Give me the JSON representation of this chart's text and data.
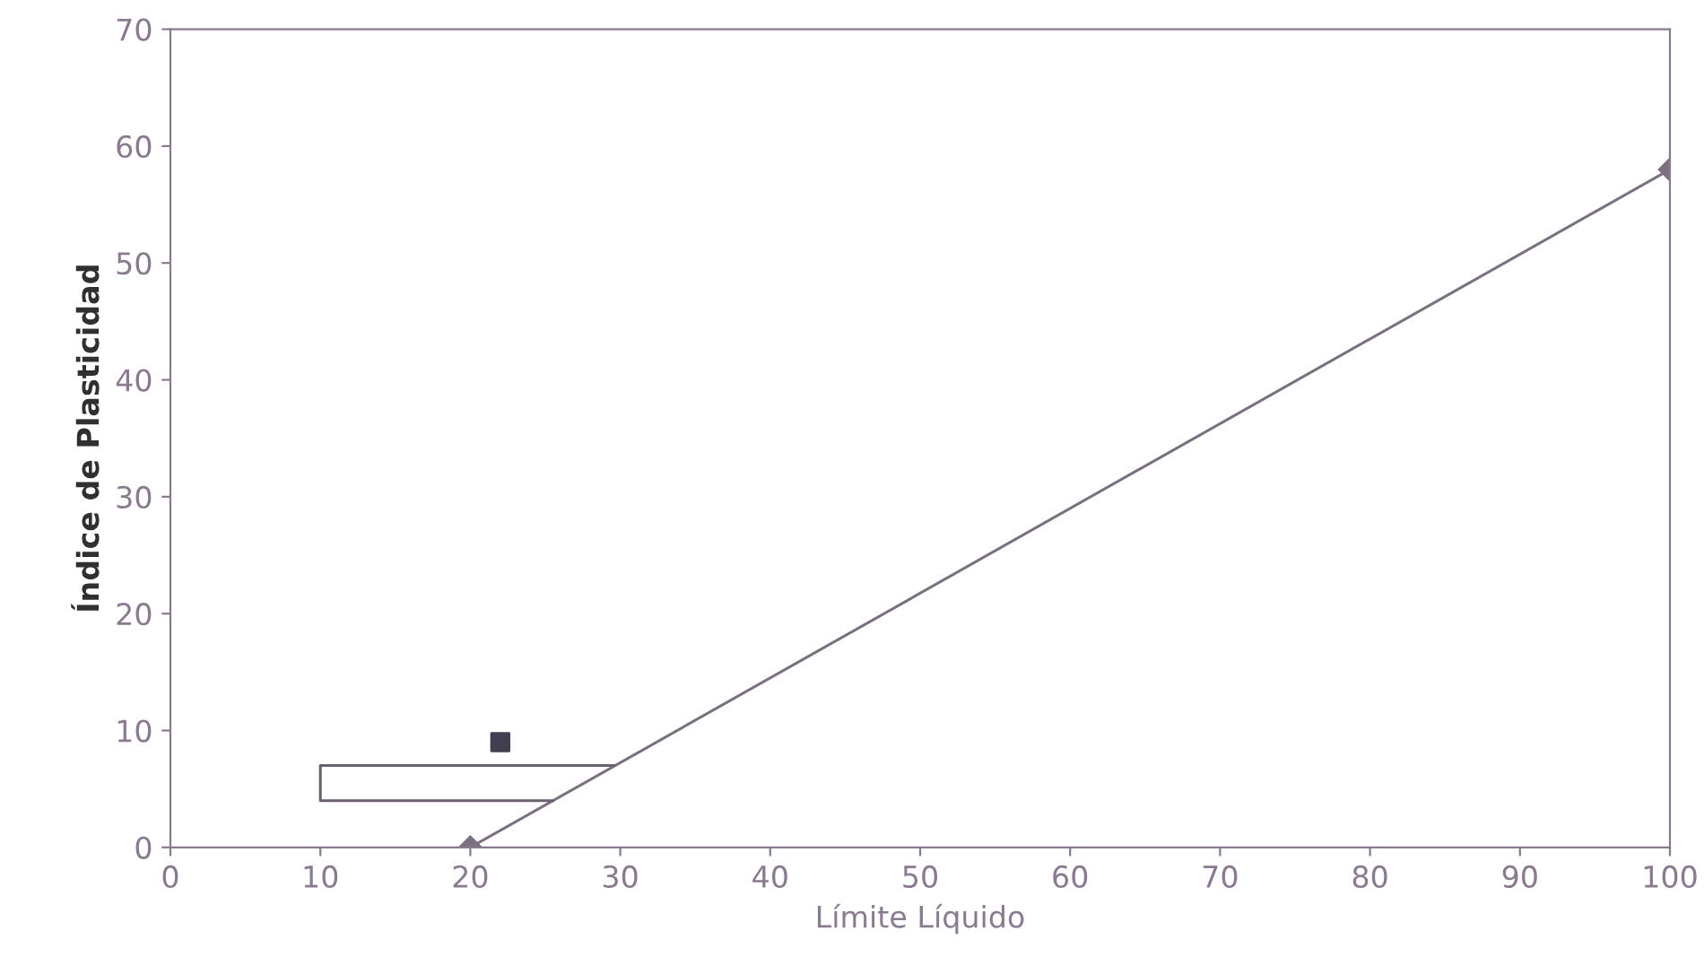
{
  "chart_data": {
    "type": "line",
    "xlabel": "Límite Líquido",
    "ylabel": "Índice de Plasticidad",
    "xlim": [
      0,
      100
    ],
    "ylim": [
      0,
      70
    ],
    "xticks": [
      0,
      10,
      20,
      30,
      40,
      50,
      60,
      70,
      80,
      90,
      100
    ],
    "yticks": [
      0,
      10,
      20,
      30,
      40,
      50,
      60,
      70
    ],
    "grid": false,
    "legend": false,
    "series": [
      {
        "color": "#7a7080",
        "marker": "diamond",
        "x": [
          20,
          100
        ],
        "values": [
          0,
          58
        ]
      },
      {
        "color": "#6a6070",
        "marker": "none",
        "x": [
          29.6,
          10,
          10,
          25.5
        ],
        "values": [
          7,
          7,
          4,
          4
        ]
      },
      {
        "type": "scatter",
        "color": "#404050",
        "marker": "square",
        "x": [
          22
        ],
        "values": [
          9
        ]
      }
    ]
  }
}
